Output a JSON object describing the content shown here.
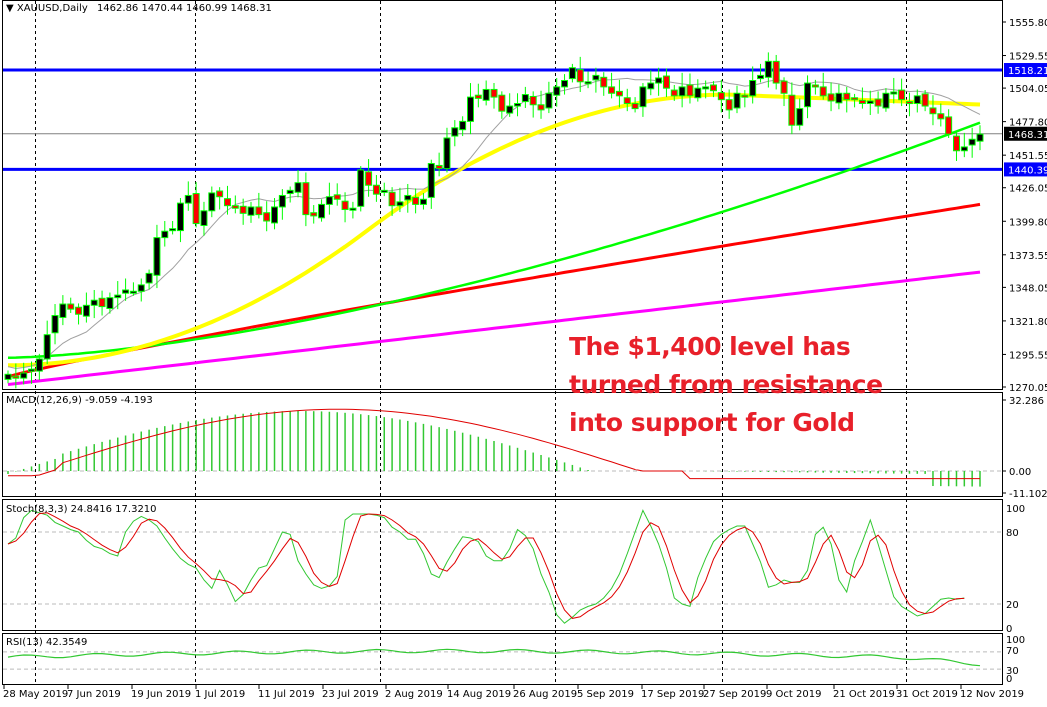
{
  "header": {
    "symbol_label": "XAUUSD,Daily",
    "ohlc": "1462.86 1470.44 1460.99 1468.31"
  },
  "annotation": {
    "line1": "The $1,400 level has",
    "line2": "turned from resistance",
    "line3": "into support for Gold",
    "color": "#e8202a"
  },
  "indicators": {
    "macd_label": "MACD(12,26,9) -9.059 -4.193",
    "stoch_label": "Stoch(8,3,3) 24.8416 17.3210",
    "rsi_label": "RSI(13) 42.3549"
  },
  "price_axis": {
    "ticks": [
      "1555.80",
      "1529.55",
      "1504.05",
      "1477.80",
      "1451.55",
      "1426.05",
      "1399.80",
      "1373.55",
      "1348.05",
      "1321.80",
      "1295.55",
      "1270.05"
    ],
    "markers": [
      {
        "label": "1518.21",
        "color": "#0000ff"
      },
      {
        "label": "1468.31",
        "color": "#000000"
      },
      {
        "label": "1440.39",
        "color": "#0000ff"
      }
    ]
  },
  "macd_axis": {
    "ticks": [
      "32.286",
      "0.00",
      "-11.102"
    ]
  },
  "stoch_axis": {
    "ticks": [
      "100",
      "80",
      "20",
      "0"
    ]
  },
  "rsi_axis": {
    "ticks": [
      "100",
      "70",
      "30",
      "0"
    ]
  },
  "time_axis": {
    "labels": [
      "28 May 2019",
      "7 Jun 2019",
      "19 Jun 2019",
      "1 Jul 2019",
      "11 Jul 2019",
      "23 Jul 2019",
      "2 Aug 2019",
      "14 Aug 2019",
      "26 Aug 2019",
      "5 Sep 2019",
      "17 Sep 2019",
      "27 Sep 2019",
      "9 Oct 2019",
      "21 Oct 2019",
      "31 Oct 2019",
      "12 Nov 2019"
    ]
  },
  "colors": {
    "support_resistance": "#0000ff",
    "bull_body": "#000000",
    "bear_body": "#ff0000",
    "candle_outline": "#00ff00",
    "ma20": "#a0a0a0",
    "ma50": "#ffff00",
    "ma100": "#00ff00",
    "ma200": "#ff0000",
    "ma_long": "#ff00ff",
    "macd_hist": "#32c832",
    "macd_signal": "#e00000",
    "stoch_k": "#32c832",
    "stoch_d": "#e00000",
    "rsi": "#32c832"
  },
  "chart_data": {
    "type": "candlestick",
    "title": "XAUUSD,Daily",
    "timeframe": "Daily",
    "last_ohlc": {
      "open": 1462.86,
      "high": 1470.44,
      "low": 1460.99,
      "close": 1468.31
    },
    "ylim": [
      1270.05,
      1555.8
    ],
    "horizontal_levels": [
      {
        "name": "resistance",
        "value": 1518.21,
        "color": "#0000ff"
      },
      {
        "name": "support",
        "value": 1440.39,
        "color": "#0000ff"
      },
      {
        "name": "current_price",
        "value": 1468.31,
        "color": "#808080"
      }
    ],
    "x_tick_labels": [
      "28 May 2019",
      "7 Jun 2019",
      "19 Jun 2019",
      "1 Jul 2019",
      "11 Jul 2019",
      "23 Jul 2019",
      "2 Aug 2019",
      "14 Aug 2019",
      "26 Aug 2019",
      "5 Sep 2019",
      "17 Sep 2019",
      "27 Sep 2019",
      "9 Oct 2019",
      "21 Oct 2019",
      "31 Oct 2019",
      "12 Nov 2019"
    ],
    "candles_close_approx": [
      1280,
      1277,
      1281,
      1284,
      1292,
      1311,
      1326,
      1335,
      1331,
      1327,
      1334,
      1338,
      1333,
      1340,
      1342,
      1346,
      1345,
      1350,
      1359,
      1387,
      1392,
      1394,
      1414,
      1420,
      1398,
      1408,
      1422,
      1419,
      1412,
      1410,
      1406,
      1411,
      1405,
      1400,
      1411,
      1420,
      1424,
      1430,
      1405,
      1404,
      1413,
      1419,
      1417,
      1409,
      1410,
      1440,
      1428,
      1421,
      1424,
      1412,
      1415,
      1420,
      1413,
      1417,
      1445,
      1441,
      1465,
      1473,
      1478,
      1497,
      1496,
      1503,
      1497,
      1486,
      1490,
      1492,
      1499,
      1491,
      1487,
      1500,
      1505,
      1510,
      1520,
      1509,
      1509,
      1514,
      1505,
      1500,
      1498,
      1492,
      1488,
      1505,
      1508,
      1512,
      1504,
      1498,
      1505,
      1498,
      1504,
      1505,
      1502,
      1495,
      1487,
      1500,
      1498,
      1510,
      1514,
      1525,
      1508,
      1500,
      1475,
      1488,
      1508,
      1505,
      1498,
      1494,
      1500,
      1495,
      1496,
      1492,
      1494,
      1490,
      1500,
      1501,
      1495,
      1492,
      1498,
      1490,
      1484,
      1480,
      1468,
      1455,
      1458,
      1464,
      1468
    ],
    "moving_averages": [
      {
        "name": "MA20",
        "color": "#a0a0a0",
        "start": 1278,
        "end": 1489
      },
      {
        "name": "MA50",
        "color": "#ffff00",
        "start": 1287,
        "end": 1492
      },
      {
        "name": "MA100",
        "color": "#00ff00",
        "start": 1293,
        "end": 1477
      },
      {
        "name": "MA200",
        "color": "#ff0000",
        "start": 1278,
        "end": 1413
      },
      {
        "name": "MA_long",
        "color": "#ff00ff",
        "start": 1272,
        "end": 1360
      }
    ],
    "macd": {
      "params": "12,26,9",
      "main": -9.059,
      "signal": -4.193,
      "ylim": [
        -11.102,
        32.286
      ]
    },
    "stochastic": {
      "params": "8,3,3",
      "k": 24.8416,
      "d": 17.321,
      "levels": [
        20,
        80
      ],
      "ylim": [
        0,
        100
      ]
    },
    "rsi": {
      "period": 13,
      "value": 42.3549,
      "levels": [
        30,
        70
      ],
      "ylim": [
        0,
        100
      ]
    }
  }
}
